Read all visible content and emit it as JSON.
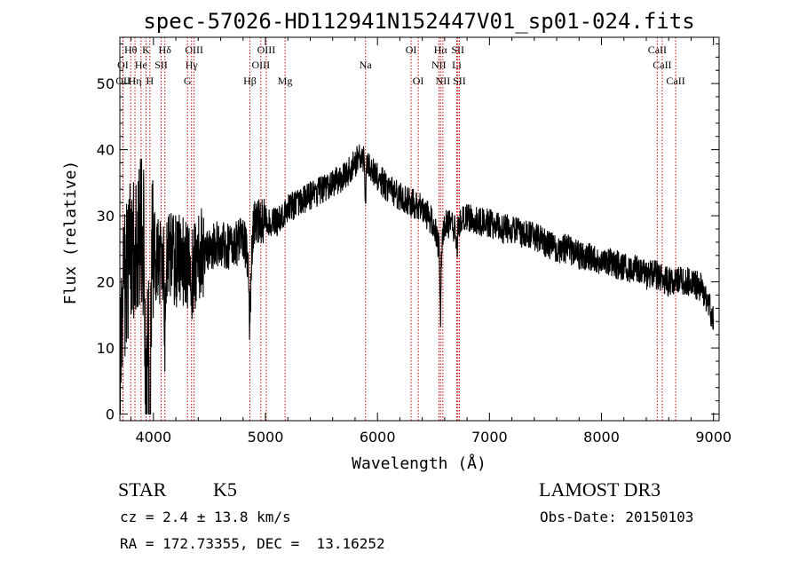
{
  "chart_data": {
    "type": "line",
    "title": "spec-57026-HD112941N152447V01_sp01-024.fits",
    "xlabel": "Wavelength (Å)",
    "ylabel": "Flux (relative)",
    "xlim": [
      3700,
      9050
    ],
    "ylim": [
      -1,
      57
    ],
    "xticks": [
      4000,
      5000,
      6000,
      7000,
      8000,
      9000
    ],
    "yticks": [
      0,
      10,
      20,
      30,
      40,
      50
    ],
    "grid": false,
    "line_color": "#000000",
    "marker_color": "#cc0000",
    "spectrum_anchor_points": {
      "x": [
        3700,
        3720,
        3750,
        3800,
        3850,
        3900,
        3950,
        4000,
        4050,
        4100,
        4150,
        4200,
        4250,
        4300,
        4350,
        4400,
        4500,
        4600,
        4700,
        4800,
        4860,
        4900,
        5000,
        5100,
        5200,
        5300,
        5400,
        5500,
        5600,
        5700,
        5800,
        5850,
        5900,
        5950,
        6000,
        6100,
        6200,
        6300,
        6400,
        6500,
        6563,
        6600,
        6700,
        6750,
        6800,
        6900,
        7000,
        7100,
        7200,
        7300,
        7400,
        7500,
        7600,
        7700,
        7800,
        7900,
        8000,
        8100,
        8200,
        8300,
        8400,
        8500,
        8600,
        8700,
        8800,
        8900,
        8950,
        9000
      ],
      "y": [
        3,
        13,
        20,
        24,
        26,
        27,
        23,
        26,
        22,
        25,
        24,
        23,
        24,
        22,
        21,
        24,
        25,
        26,
        25,
        27,
        22,
        29,
        29,
        29,
        31,
        32,
        33,
        34,
        35,
        36,
        38,
        39,
        38,
        37,
        36,
        34,
        33,
        32,
        31,
        29,
        24,
        29,
        28,
        29,
        30,
        29,
        29,
        28,
        28,
        27,
        27,
        26,
        25,
        25,
        24,
        24,
        23,
        23,
        22,
        22,
        21,
        21,
        20,
        20,
        20,
        19,
        17,
        14
      ]
    },
    "line_markers": [
      {
        "label": "Hθ",
        "x": 3797,
        "row": 0
      },
      {
        "label": "K",
        "x": 3934,
        "row": 0
      },
      {
        "label": "Hδ",
        "x": 4102,
        "row": 0
      },
      {
        "label": "OIII",
        "x": 4363,
        "row": 0
      },
      {
        "label": "OIII",
        "x": 5007,
        "row": 0
      },
      {
        "label": "OI",
        "x": 6300,
        "row": 0
      },
      {
        "label": "Hα",
        "x": 6563,
        "row": 0
      },
      {
        "label": "SII",
        "x": 6717,
        "row": 0
      },
      {
        "label": "CaII",
        "x": 8498,
        "row": 0
      },
      {
        "label": "OI",
        "x": 3727,
        "row": 1
      },
      {
        "label": "He",
        "x": 3889,
        "row": 1
      },
      {
        "label": "SII",
        "x": 4069,
        "row": 1
      },
      {
        "label": "Hγ",
        "x": 4340,
        "row": 1
      },
      {
        "label": "OIII",
        "x": 4959,
        "row": 1
      },
      {
        "label": "Na",
        "x": 5893,
        "row": 1
      },
      {
        "label": "NII",
        "x": 6548,
        "row": 1
      },
      {
        "label": "Li",
        "x": 6708,
        "row": 1
      },
      {
        "label": "CaII",
        "x": 8542,
        "row": 1
      },
      {
        "label": "OII",
        "x": 3729,
        "row": 2
      },
      {
        "label": "Hη",
        "x": 3835,
        "row": 2
      },
      {
        "label": "H",
        "x": 3968,
        "row": 2
      },
      {
        "label": "G",
        "x": 4304,
        "row": 2
      },
      {
        "label": "Hβ",
        "x": 4861,
        "row": 2
      },
      {
        "label": "Mg",
        "x": 5175,
        "row": 2
      },
      {
        "label": "OI",
        "x": 6364,
        "row": 2
      },
      {
        "label": "NII",
        "x": 6584,
        "row": 2
      },
      {
        "label": "SII",
        "x": 6731,
        "row": 2
      },
      {
        "label": "CaII",
        "x": 8662,
        "row": 2
      }
    ]
  },
  "info": {
    "class_label": "STAR",
    "subclass": "K5",
    "survey": "LAMOST DR3",
    "cz": "cz = 2.4 ± 13.8 km/s",
    "obs_date": "Obs-Date: 20150103",
    "coords": "RA = 172.73355, DEC =  13.16252"
  }
}
